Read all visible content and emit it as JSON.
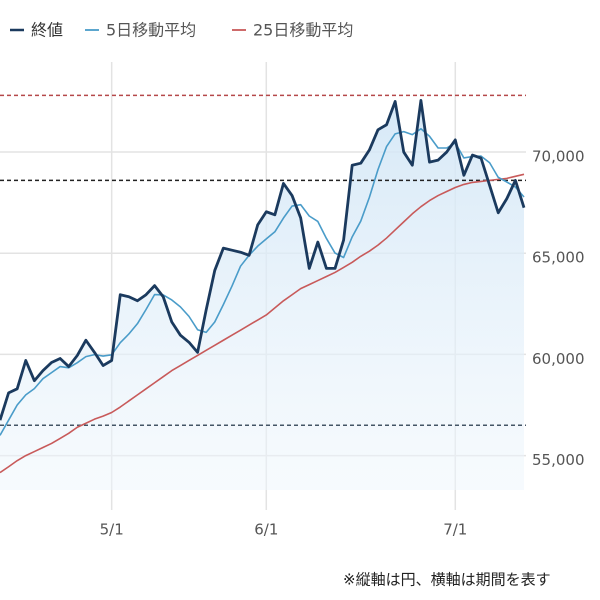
{
  "chart_data": {
    "type": "line",
    "categories": [
      null,
      null,
      null,
      null,
      null,
      null,
      null,
      null,
      null,
      null,
      null,
      null,
      null,
      "5/1",
      null,
      null,
      null,
      null,
      null,
      null,
      null,
      null,
      null,
      null,
      null,
      null,
      null,
      null,
      null,
      null,
      null,
      "6/1",
      null,
      null,
      null,
      null,
      null,
      null,
      null,
      null,
      null,
      null,
      null,
      null,
      null,
      null,
      null,
      null,
      null,
      null,
      null,
      null,
      null,
      "7/1",
      null,
      null,
      null,
      null,
      null,
      null,
      null,
      null
    ],
    "series": [
      {
        "name": "終値",
        "color": "#1b3a5e",
        "values": [
          56750,
          58100,
          58300,
          59700,
          58700,
          59200,
          59600,
          59800,
          59400,
          59950,
          60700,
          60100,
          59450,
          59700,
          62950,
          62850,
          62650,
          62950,
          63400,
          62850,
          61600,
          60950,
          60600,
          60100,
          62200,
          64150,
          65250,
          65150,
          65050,
          64900,
          66400,
          67050,
          66900,
          68450,
          67850,
          66750,
          64250,
          65550,
          64250,
          64250,
          65650,
          69350,
          69450,
          70100,
          71100,
          71350,
          72500,
          70000,
          69350,
          72550,
          69500,
          69600,
          70000,
          70600,
          68850,
          69850,
          69700,
          68350,
          67000,
          67700,
          68600,
          67250
        ]
      },
      {
        "name": "5日移動平均",
        "color": "#4a9cc9",
        "values": [
          56000,
          56750,
          57500,
          58000,
          58310,
          58800,
          59100,
          59400,
          59340,
          59590,
          59890,
          59990,
          59920,
          59980,
          60580,
          61010,
          61520,
          62220,
          62960,
          62940,
          62690,
          62350,
          61880,
          61220,
          61090,
          61600,
          62460,
          63370,
          64360,
          64900,
          65350,
          65710,
          66060,
          66740,
          67330,
          67400,
          66840,
          66570,
          65730,
          65010,
          64790,
          65810,
          66590,
          67760,
          69130,
          70270,
          70900,
          71010,
          70860,
          71150,
          70780,
          70200,
          70200,
          70450,
          69710,
          69780,
          69800,
          69470,
          68750,
          68520,
          68270,
          67780
        ]
      },
      {
        "name": "25日移動平均",
        "color": "#c85a5a",
        "values": [
          54160,
          54450,
          54750,
          55000,
          55200,
          55400,
          55600,
          55850,
          56100,
          56400,
          56600,
          56800,
          56950,
          57130,
          57400,
          57700,
          58000,
          58300,
          58600,
          58900,
          59200,
          59450,
          59700,
          59950,
          60200,
          60450,
          60700,
          60950,
          61200,
          61450,
          61700,
          61950,
          62300,
          62650,
          62950,
          63250,
          63450,
          63650,
          63850,
          64050,
          64300,
          64550,
          64850,
          65100,
          65400,
          65750,
          66150,
          66550,
          66950,
          67300,
          67600,
          67850,
          68050,
          68250,
          68400,
          68500,
          68550,
          68600,
          68650,
          68700,
          68800,
          68900
        ]
      }
    ],
    "hlines": [
      {
        "value": 72800,
        "color": "#b5484a"
      },
      {
        "value": 68600,
        "color": "#222222"
      },
      {
        "value": 56500,
        "color": "#445566"
      }
    ],
    "ylim": [
      53300,
      74450
    ],
    "yticks": [
      {
        "value": 55000,
        "label": "55,000"
      },
      {
        "value": 60000,
        "label": "60,000"
      },
      {
        "value": 65000,
        "label": "65,000"
      },
      {
        "value": 70000,
        "label": "70,000"
      }
    ],
    "grid": true,
    "note": "※縦軸は円、横軸は期間を表す"
  }
}
